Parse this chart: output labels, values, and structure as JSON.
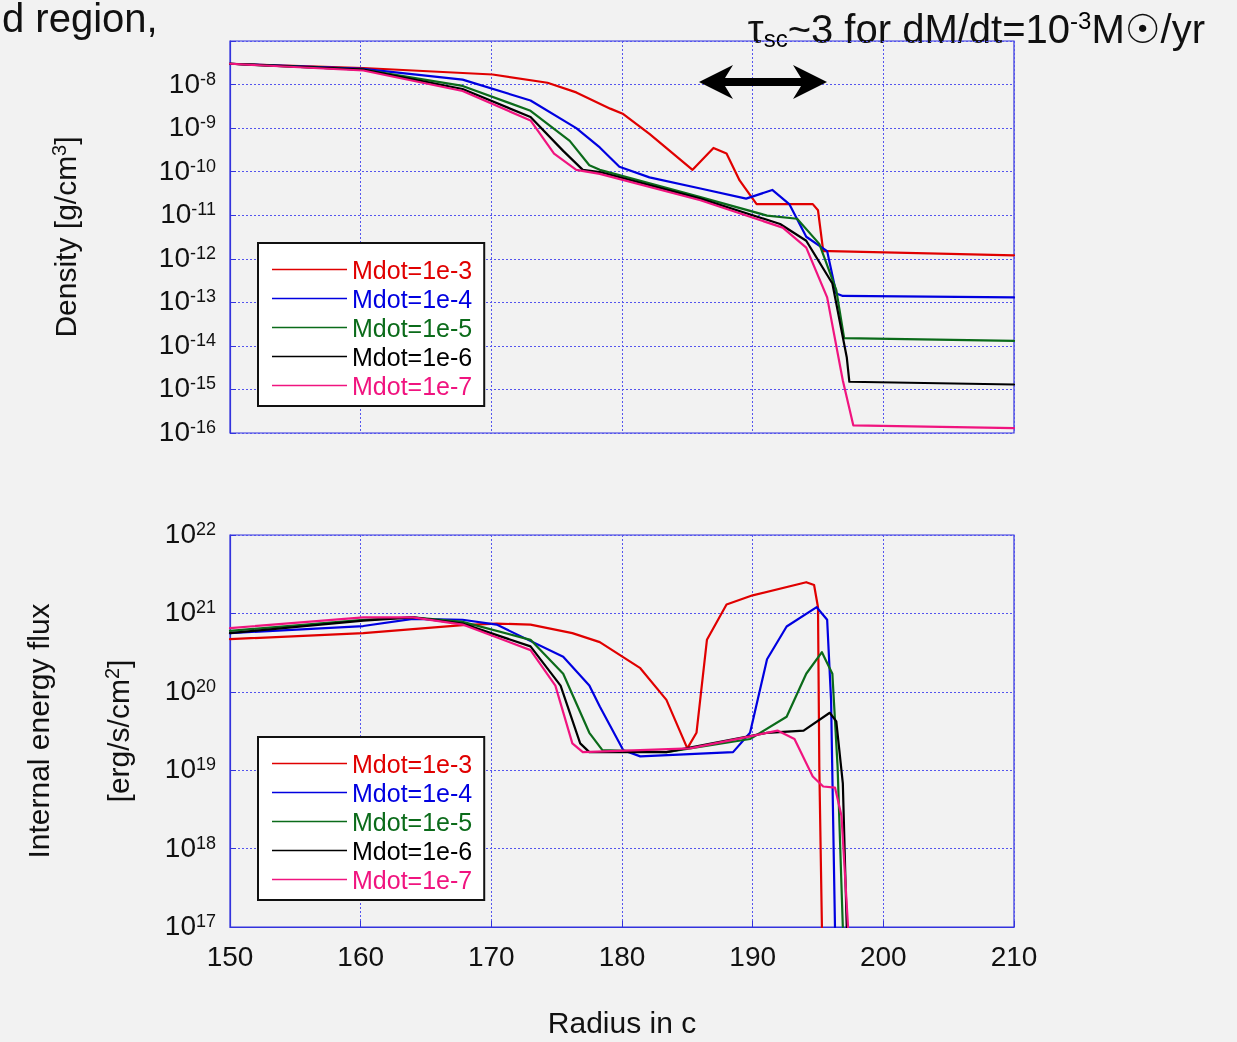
{
  "chart_data": [
    {
      "type": "line",
      "title": "d region,",
      "ylabel": "Density [g/cm$^{3}$]",
      "annotations": [
        "τ$_{sc}$~3 for dM/dt=10$^{-3}$M☉/yr"
      ],
      "log": "y",
      "grid": true,
      "legend": "bottom left",
      "marker": "none",
      "line_style": "solid",
      "tick_labels": "y",
      "xlim": [
        150,
        210
      ],
      "xticks": [
        150,
        160,
        170,
        180,
        190,
        200,
        210
      ],
      "ylim": [
        1e-16,
        1e-07
      ],
      "yticks": [
        {
          "value": 1e-16,
          "label": "10$^{-16}$"
        },
        {
          "value": 1e-15,
          "label": "10$^{-15}$"
        },
        {
          "value": 1e-14,
          "label": "10$^{-14}$"
        },
        {
          "value": 1e-13,
          "label": "10$^{-13}$"
        },
        {
          "value": 1e-12,
          "label": "10$^{-12}$"
        },
        {
          "value": 1e-11,
          "label": "10$^{-11}$"
        },
        {
          "value": 1e-10,
          "label": "10$^{-10}$"
        },
        {
          "value": 1e-09,
          "label": "10$^{-9}$"
        },
        {
          "value": 1e-08,
          "label": "10$^{-8}$"
        },
        {
          "value": 1e-07,
          "label": null
        }
      ],
      "series": [
        {
          "name": "Mdot=1e-3",
          "color": "#e00000",
          "x": [
            150,
            160.2,
            170.1,
            174.3,
            176.5,
            179.1,
            180.1,
            182.1,
            185.4,
            187.0,
            188.0,
            189.0,
            190.3,
            194.6,
            195.0,
            195.4,
            195.9,
            210
          ],
          "values": [
            3e-08,
            2.4e-08,
            1.7e-08,
            1.1e-08,
            6.6e-09,
            2.8e-09,
            2.1e-09,
            7.4e-10,
            1.1e-10,
            3.5e-10,
            2.6e-10,
            6.3e-11,
            1.8e-11,
            1.8e-11,
            1.3e-11,
            1.5e-12,
            1.5e-12,
            1.2e-12
          ]
        },
        {
          "name": "Mdot=1e-4",
          "color": "#0000e0",
          "x": [
            150,
            160.2,
            167.8,
            173,
            176.5,
            178.3,
            179.8,
            182.1,
            186,
            189.5,
            191.5,
            192.8,
            194.1,
            195.7,
            196.4,
            196.9,
            210
          ],
          "values": [
            3e-08,
            2.3e-08,
            1.3e-08,
            4.3e-09,
            1e-09,
            3.6e-10,
            1.3e-10,
            7.4e-11,
            4.1e-11,
            2.4e-11,
            3.8e-11,
            1.8e-11,
            3.2e-12,
            1.5e-12,
            1.6e-13,
            1.4e-13,
            1.3e-13
          ]
        },
        {
          "name": "Mdot=1e-5",
          "color": "#0b6b1a",
          "x": [
            150,
            160.2,
            167.8,
            173,
            176,
            177.5,
            178.3,
            186,
            191.1,
            193.4,
            195.1,
            196.4,
            197.0,
            210
          ],
          "values": [
            3e-08,
            2.2e-08,
            9.3e-09,
            2.5e-09,
            5.1e-10,
            1.4e-10,
            1.1e-10,
            2.6e-11,
            9.8e-12,
            8.3e-12,
            2.2e-12,
            1.9e-13,
            1.5e-14,
            1.3e-14
          ]
        },
        {
          "name": "Mdot=1e-6",
          "color": "#000000",
          "x": [
            150,
            160.2,
            167.8,
            173,
            175.5,
            177,
            178.3,
            186,
            192.1,
            194.1,
            196.1,
            197.2,
            197.4,
            210
          ],
          "values": [
            3e-08,
            2.2e-08,
            7.9e-09,
            1.8e-09,
            3e-10,
            1.1e-10,
            9.8e-11,
            2.4e-11,
            6.3e-12,
            2.6e-12,
            2.7e-13,
            5.5e-15,
            1.5e-15,
            1.3e-15
          ]
        },
        {
          "name": "Mdot=1e-7",
          "color": "#f0147f",
          "x": [
            150,
            160.2,
            167.8,
            173,
            174.8,
            176.5,
            178.3,
            186,
            192.3,
            194.1,
            195.7,
            196.9,
            197.7,
            210
          ],
          "values": [
            3e-08,
            2.1e-08,
            7.1e-09,
            1.5e-09,
            2.6e-10,
            1.1e-10,
            8.9e-11,
            2.2e-11,
            5.2e-12,
            1.8e-12,
            1.3e-13,
            1.6e-15,
            1.5e-16,
            1.3e-16
          ]
        }
      ]
    },
    {
      "type": "line",
      "xlabel": "Radius in c",
      "ylabel": "Internal energy flux\n[erg/s/cm$^{2}$]",
      "log": "y",
      "grid": true,
      "legend": "bottom left",
      "marker": "none",
      "line_style": "solid",
      "xlim": [
        150,
        210
      ],
      "xticks": [
        150,
        160,
        170,
        180,
        190,
        200,
        210
      ],
      "ylim": [
        1e+17,
        1e+22
      ],
      "yticks": [
        {
          "value": 1e+17,
          "label": "10$^{17}$"
        },
        {
          "value": 1e+18,
          "label": "10$^{18}$"
        },
        {
          "value": 1e+19,
          "label": "10$^{19}$"
        },
        {
          "value": 1e+20,
          "label": "10$^{20}$"
        },
        {
          "value": 1e+21,
          "label": "10$^{21}$"
        },
        {
          "value": 1e+22,
          "label": "10$^{22}$"
        }
      ],
      "series": [
        {
          "name": "Mdot=1e-3",
          "color": "#e00000",
          "x": [
            150,
            160.2,
            167.8,
            170.4,
            173,
            176.2,
            178.3,
            181.4,
            183.4,
            185.0,
            185.7,
            186.5,
            188,
            190,
            194.1,
            194.7,
            195.0,
            195.1,
            195.3
          ],
          "values": [
            4.7e+20,
            5.6e+20,
            7.1e+20,
            7.4e+20,
            7.2e+20,
            5.6e+20,
            4.3e+20,
            2e+20,
            7.9e+19,
            1.9e+19,
            3e+19,
            4.6e+20,
            1.3e+21,
            1.7e+21,
            2.5e+21,
            2.3e+21,
            1.2e+21,
            1.1e+19,
            1e+17
          ]
        },
        {
          "name": "Mdot=1e-4",
          "color": "#0000e0",
          "x": [
            150,
            160.2,
            164,
            167.8,
            170.4,
            175.5,
            177.5,
            178.3,
            180.1,
            181.4,
            188.5,
            189.8,
            191.1,
            192.6,
            194.9,
            195.7,
            196.0,
            196.3
          ],
          "values": [
            5.6e+20,
            6.9e+20,
            8.5e+20,
            8.3e+20,
            7.2e+20,
            2.8e+20,
            1.2e+20,
            6.5e+19,
            1.8e+19,
            1.5e+19,
            1.7e+19,
            3e+19,
            2.6e+20,
            6.8e+20,
            1.2e+21,
            8.3e+20,
            7.9e+19,
            1e+17
          ]
        },
        {
          "name": "Mdot=1e-5",
          "color": "#0b6b1a",
          "x": [
            150,
            160.2,
            164,
            167.8,
            173,
            175.5,
            177.5,
            178.5,
            183.4,
            189.8,
            192.6,
            194.1,
            195.3,
            196.1,
            196.5,
            196.9
          ],
          "values": [
            6e+20,
            8.3e+20,
            8.9e+20,
            7.8e+20,
            4.6e+20,
            1.7e+20,
            3e+19,
            1.8e+19,
            1.7e+19,
            2.5e+19,
            4.8e+19,
            1.7e+20,
            3.2e+20,
            1.7e+20,
            1.1e+19,
            1e+17
          ]
        },
        {
          "name": "Mdot=1e-6",
          "color": "#000000",
          "x": [
            150,
            160.2,
            164,
            167.8,
            173,
            175.3,
            176.8,
            177.5,
            183.4,
            191.1,
            193.9,
            195.9,
            196.4,
            196.9,
            197.2
          ],
          "values": [
            5.6e+20,
            8.1e+20,
            8.9e+20,
            7.4e+20,
            3.8e+20,
            1.2e+20,
            2.2e+19,
            1.7e+19,
            1.7e+19,
            3e+19,
            3.2e+19,
            5.4e+19,
            4.2e+19,
            6.8e+18,
            1e+17
          ]
        },
        {
          "name": "Mdot=1e-7",
          "color": "#f0147f",
          "x": [
            150,
            160.2,
            164,
            167.8,
            173,
            174.9,
            176.2,
            177,
            185.2,
            189.8,
            191.9,
            193.2,
            194.6,
            195.4,
            196.3,
            196.8,
            197.3
          ],
          "values": [
            6.5e+20,
            8.9e+20,
            8.9e+20,
            7.2e+20,
            3.4e+20,
            1.2e+20,
            2.2e+19,
            1.7e+19,
            1.9e+19,
            2.7e+19,
            3.2e+19,
            2.5e+19,
            8.3e+18,
            6.2e+18,
            6e+18,
            2.6e+18,
            1e+17
          ]
        }
      ]
    }
  ]
}
